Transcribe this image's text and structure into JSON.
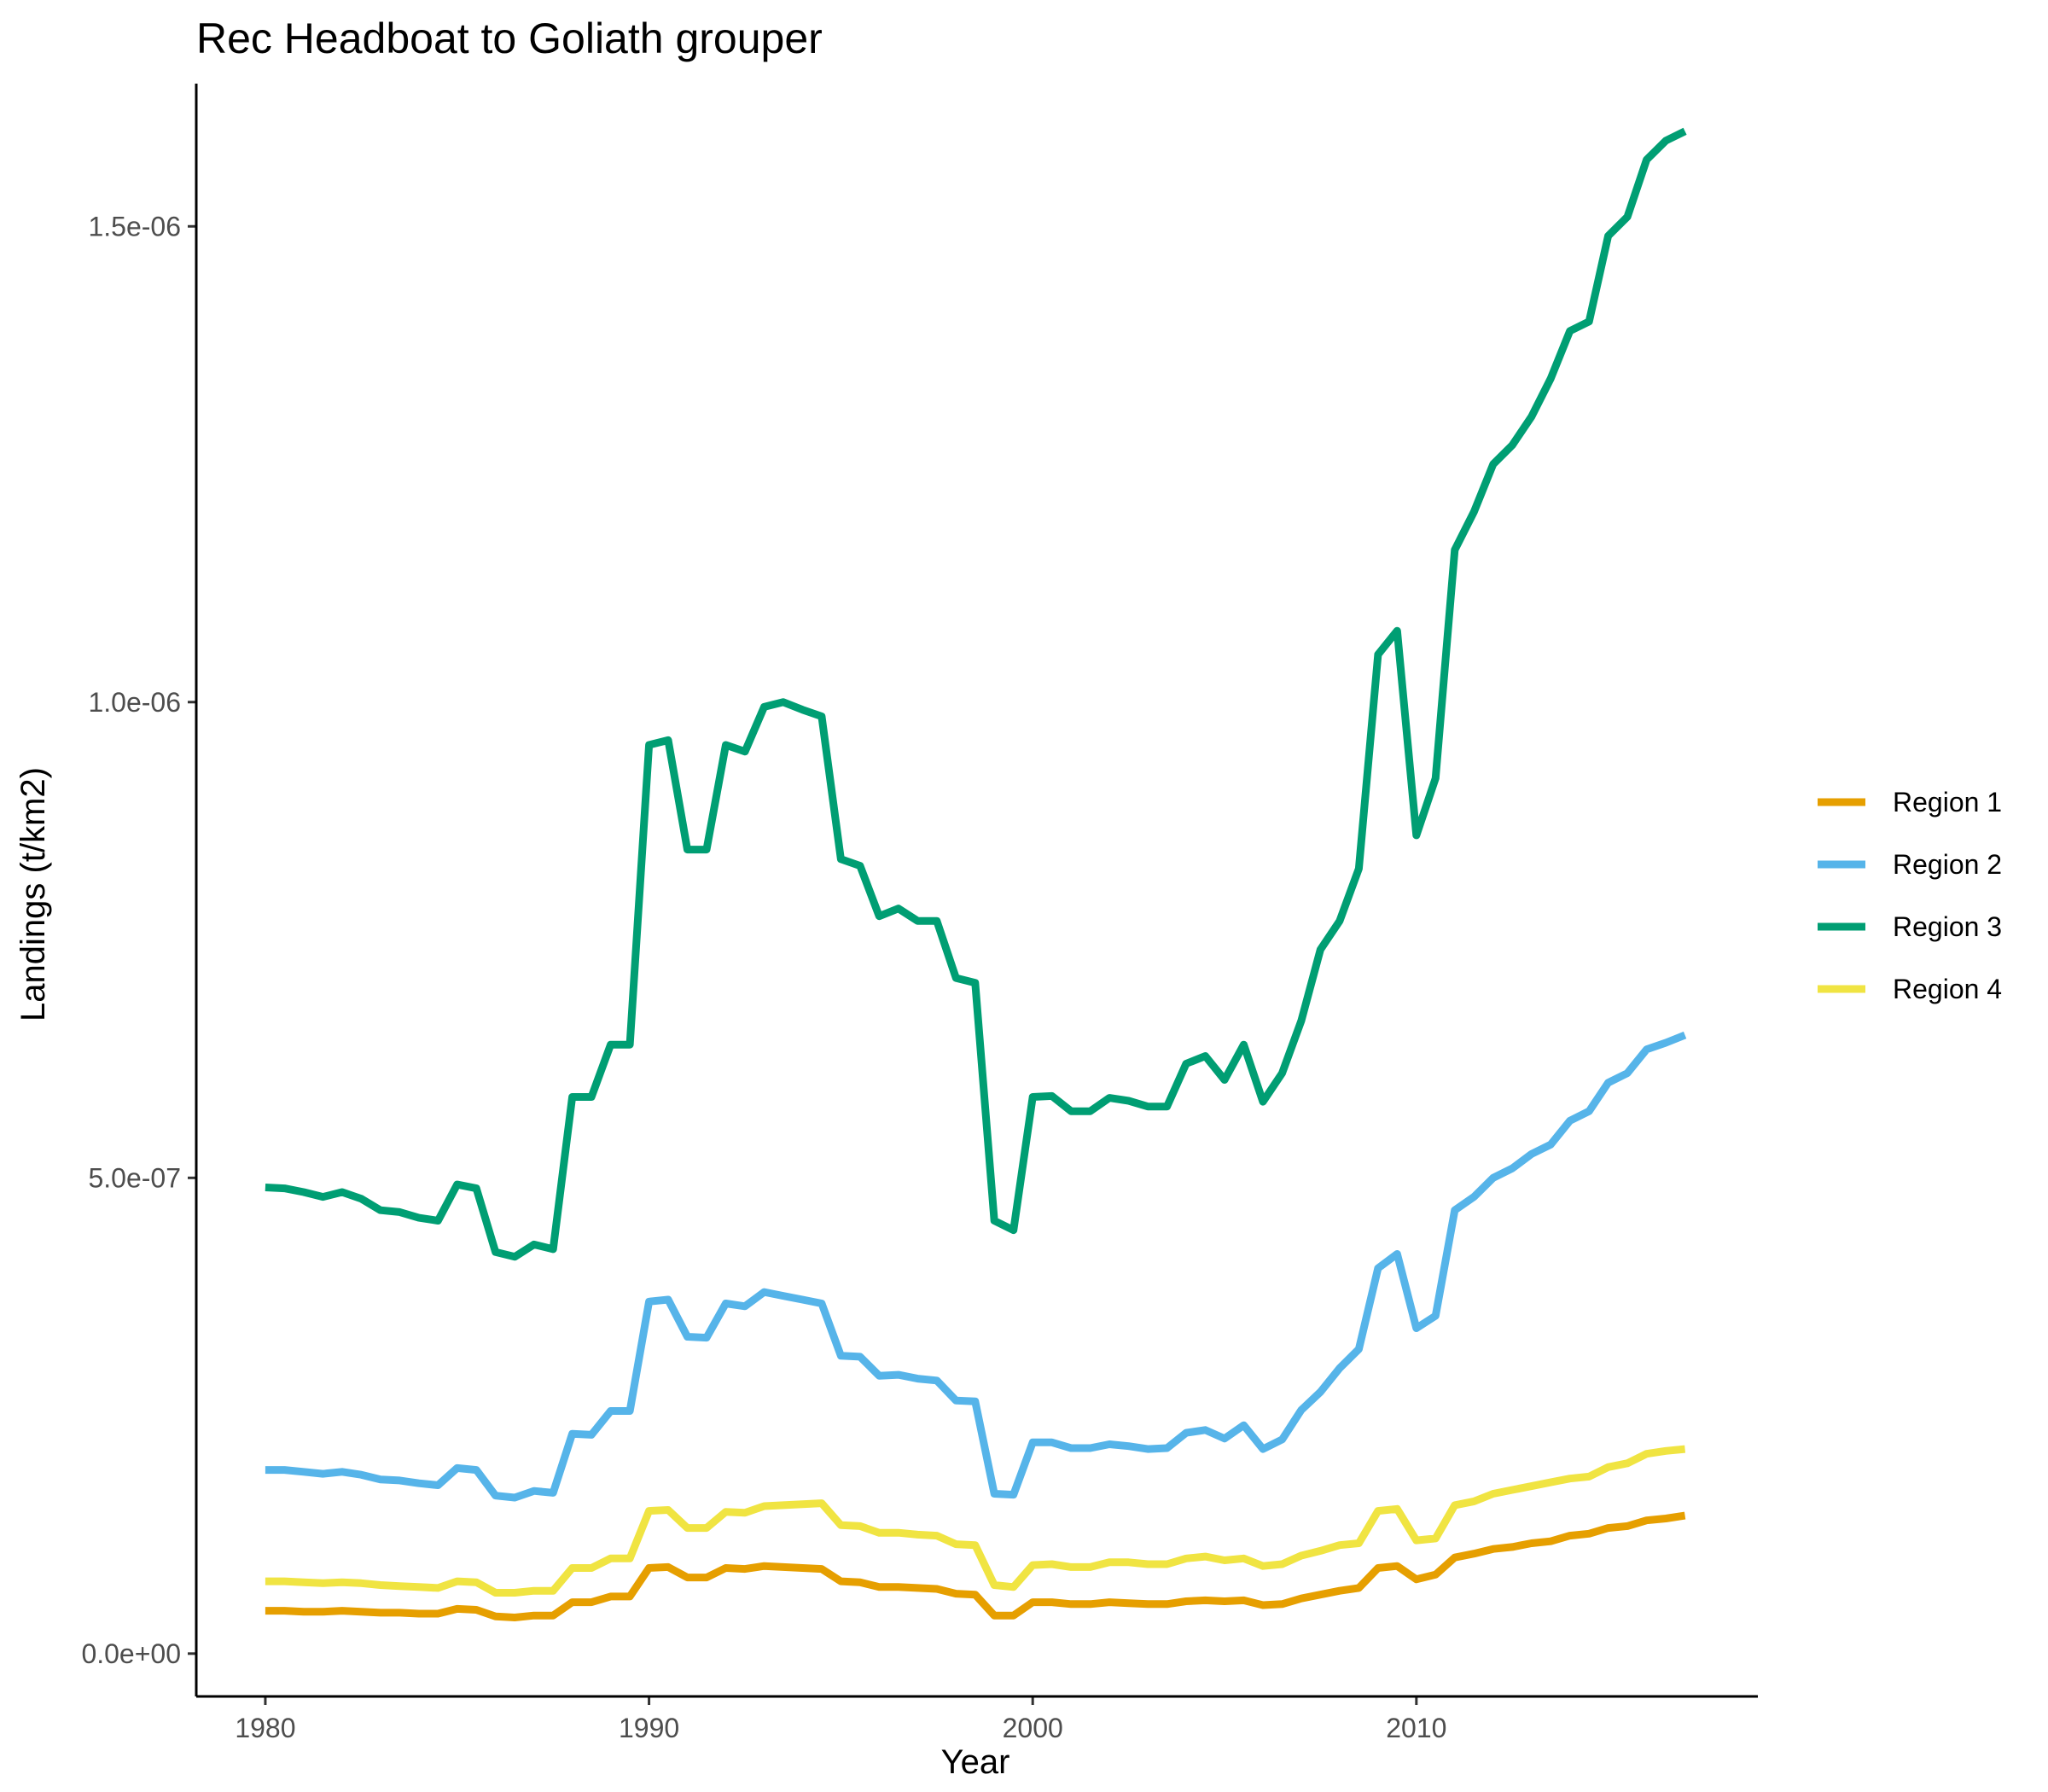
{
  "chart_data": {
    "type": "line",
    "title": "Rec Headboat to Goliath grouper",
    "xlabel": "Year",
    "ylabel": "Landings (t/km2)",
    "xlim": [
      1978.2,
      2018.9
    ],
    "ylim": [
      -4.5e-08,
      1.65e-06
    ],
    "x_ticks": [
      1980,
      1990,
      2000,
      2010
    ],
    "x_tick_labels": [
      "1980",
      "1990",
      "2000",
      "2010"
    ],
    "y_ticks": [
      0,
      5e-07,
      1e-06,
      1.5e-06
    ],
    "y_tick_labels": [
      "0.0e+00",
      "5.0e-07",
      "1.0e-06",
      "1.5e-06"
    ],
    "grid": false,
    "legend_position": "right",
    "x": [
      1980.0,
      1980.5,
      1981.0,
      1981.5,
      1982.0,
      1982.5,
      1983.0,
      1983.5,
      1984.0,
      1984.5,
      1985.0,
      1985.5,
      1986.0,
      1986.5,
      1987.0,
      1987.5,
      1988.0,
      1988.5,
      1989.0,
      1989.5,
      1990.0,
      1990.5,
      1991.0,
      1991.5,
      1992.0,
      1992.5,
      1993.0,
      1993.5,
      1994.0,
      1994.5,
      1995.0,
      1995.5,
      1996.0,
      1996.5,
      1997.0,
      1997.5,
      1998.0,
      1998.5,
      1999.0,
      1999.5,
      2000.0,
      2000.5,
      2001.0,
      2001.5,
      2002.0,
      2002.5,
      2003.0,
      2003.5,
      2004.0,
      2004.5,
      2005.0,
      2005.5,
      2006.0,
      2006.5,
      2007.0,
      2007.5,
      2008.0,
      2008.5,
      2009.0,
      2009.5,
      2010.0,
      2010.5,
      2011.0,
      2011.5,
      2012.0,
      2012.5,
      2013.0,
      2013.5,
      2014.0,
      2014.5,
      2015.0,
      2015.5,
      2016.0,
      2016.5,
      2017.0
    ],
    "series": [
      {
        "name": "Region 1",
        "color": "#E69F00",
        "values": [
          4.5e-08,
          4.5e-08,
          4.4e-08,
          4.4e-08,
          4.5e-08,
          4.4e-08,
          4.3e-08,
          4.3e-08,
          4.2e-08,
          4.2e-08,
          4.7e-08,
          4.6e-08,
          3.9e-08,
          3.8e-08,
          4e-08,
          4e-08,
          5.4e-08,
          5.4e-08,
          6e-08,
          6e-08,
          9e-08,
          9.1e-08,
          8e-08,
          8e-08,
          9e-08,
          8.9e-08,
          9.2e-08,
          9.1e-08,
          9e-08,
          8.9e-08,
          7.6e-08,
          7.5e-08,
          7e-08,
          7e-08,
          6.9e-08,
          6.8e-08,
          6.3e-08,
          6.2e-08,
          4e-08,
          4e-08,
          5.4e-08,
          5.4e-08,
          5.2e-08,
          5.2e-08,
          5.4e-08,
          5.3e-08,
          5.2e-08,
          5.2e-08,
          5.5e-08,
          5.6e-08,
          5.5e-08,
          5.6e-08,
          5.1e-08,
          5.2e-08,
          5.8e-08,
          6.2e-08,
          6.6e-08,
          6.9e-08,
          9e-08,
          9.2e-08,
          7.8e-08,
          8.3e-08,
          1.01e-07,
          1.05e-07,
          1.1e-07,
          1.12e-07,
          1.16e-07,
          1.18e-07,
          1.24e-07,
          1.26e-07,
          1.32e-07,
          1.34e-07,
          1.4e-07,
          1.42e-07,
          1.45e-07
        ]
      },
      {
        "name": "Region 2",
        "color": "#56B4E9",
        "values": [
          1.93e-07,
          1.93e-07,
          1.91e-07,
          1.89e-07,
          1.91e-07,
          1.88e-07,
          1.83e-07,
          1.82e-07,
          1.79e-07,
          1.77e-07,
          1.95e-07,
          1.93e-07,
          1.66e-07,
          1.64e-07,
          1.71e-07,
          1.69e-07,
          2.31e-07,
          2.3e-07,
          2.55e-07,
          2.55e-07,
          3.7e-07,
          3.72e-07,
          3.33e-07,
          3.32e-07,
          3.68e-07,
          3.65e-07,
          3.8e-07,
          3.76e-07,
          3.72e-07,
          3.68e-07,
          3.13e-07,
          3.12e-07,
          2.92e-07,
          2.93e-07,
          2.89e-07,
          2.87e-07,
          2.66e-07,
          2.65e-07,
          1.68e-07,
          1.67e-07,
          2.22e-07,
          2.22e-07,
          2.16e-07,
          2.16e-07,
          2.2e-07,
          2.18e-07,
          2.15e-07,
          2.16e-07,
          2.32e-07,
          2.35e-07,
          2.26e-07,
          2.4e-07,
          2.15e-07,
          2.25e-07,
          2.56e-07,
          2.75e-07,
          3e-07,
          3.2e-07,
          4.05e-07,
          4.2e-07,
          3.42e-07,
          3.55e-07,
          4.66e-07,
          4.8e-07,
          5e-07,
          5.1e-07,
          5.25e-07,
          5.35e-07,
          5.6e-07,
          5.7e-07,
          6e-07,
          6.1e-07,
          6.35e-07,
          6.42e-07,
          6.5e-07
        ]
      },
      {
        "name": "Region 3",
        "color": "#009E73",
        "values": [
          4.9e-07,
          4.89e-07,
          4.85e-07,
          4.8e-07,
          4.85e-07,
          4.78e-07,
          4.66e-07,
          4.64e-07,
          4.58e-07,
          4.55e-07,
          4.93e-07,
          4.89e-07,
          4.22e-07,
          4.17e-07,
          4.3e-07,
          4.25e-07,
          5.85e-07,
          5.85e-07,
          6.4e-07,
          6.4e-07,
          9.55e-07,
          9.6e-07,
          8.45e-07,
          8.45e-07,
          9.55e-07,
          9.48e-07,
          9.95e-07,
          1e-06,
          9.92e-07,
          9.85e-07,
          8.35e-07,
          8.28e-07,
          7.75e-07,
          7.83e-07,
          7.7e-07,
          7.7e-07,
          7.1e-07,
          7.05e-07,
          4.55e-07,
          4.45e-07,
          5.85e-07,
          5.86e-07,
          5.7e-07,
          5.7e-07,
          5.84e-07,
          5.81e-07,
          5.75e-07,
          5.75e-07,
          6.2e-07,
          6.28e-07,
          6.03e-07,
          6.4e-07,
          5.8e-07,
          6.1e-07,
          6.65e-07,
          7.4e-07,
          7.7e-07,
          8.25e-07,
          1.05e-06,
          1.075e-06,
          8.6e-07,
          9.2e-07,
          1.16e-06,
          1.2e-06,
          1.25e-06,
          1.27e-06,
          1.3e-06,
          1.34e-06,
          1.39e-06,
          1.4e-06,
          1.49e-06,
          1.51e-06,
          1.57e-06,
          1.59e-06,
          1.6e-06
        ]
      },
      {
        "name": "Region 4",
        "color": "#F0E442",
        "values": [
          7.6e-08,
          7.6e-08,
          7.5e-08,
          7.4e-08,
          7.5e-08,
          7.4e-08,
          7.2e-08,
          7.1e-08,
          7e-08,
          6.9e-08,
          7.6e-08,
          7.5e-08,
          6.4e-08,
          6.4e-08,
          6.6e-08,
          6.6e-08,
          9e-08,
          9e-08,
          1e-07,
          1e-07,
          1.5e-07,
          1.51e-07,
          1.32e-07,
          1.32e-07,
          1.49e-07,
          1.48e-07,
          1.55e-07,
          1.56e-07,
          1.57e-07,
          1.58e-07,
          1.35e-07,
          1.34e-07,
          1.27e-07,
          1.27e-07,
          1.25e-07,
          1.24e-07,
          1.15e-07,
          1.14e-07,
          7.2e-08,
          7e-08,
          9.3e-08,
          9.4e-08,
          9.1e-08,
          9.1e-08,
          9.6e-08,
          9.6e-08,
          9.4e-08,
          9.4e-08,
          1e-07,
          1.02e-07,
          9.8e-08,
          1e-07,
          9.2e-08,
          9.4e-08,
          1.03e-07,
          1.08e-07,
          1.14e-07,
          1.16e-07,
          1.5e-07,
          1.52e-07,
          1.19e-07,
          1.21e-07,
          1.56e-07,
          1.6e-07,
          1.68e-07,
          1.72e-07,
          1.76e-07,
          1.8e-07,
          1.84e-07,
          1.86e-07,
          1.96e-07,
          2e-07,
          2.1e-07,
          2.13e-07,
          2.15e-07
        ]
      }
    ]
  }
}
